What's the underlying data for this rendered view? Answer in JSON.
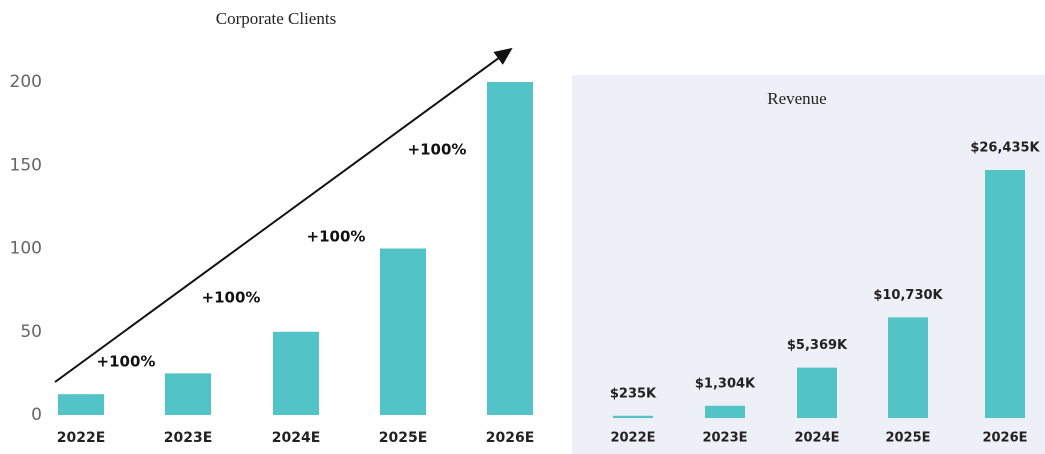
{
  "chart_data": [
    {
      "type": "bar",
      "title": "Corporate Clients",
      "categories": [
        "2022E",
        "2023E",
        "2024E",
        "2025E",
        "2026E"
      ],
      "values": [
        12.5,
        25,
        50,
        100,
        200
      ],
      "color": "#52c3c6",
      "ylim": [
        0,
        200
      ],
      "yticks": [
        0,
        50,
        100,
        150,
        200
      ],
      "annotations": [
        "+100%",
        "+100%",
        "+100%",
        "+100%"
      ]
    },
    {
      "type": "bar",
      "title": "Revenue",
      "categories": [
        "2022E",
        "2023E",
        "2024E",
        "2025E",
        "2026E"
      ],
      "values": [
        235,
        1304,
        5369,
        10730,
        26435
      ],
      "value_labels": [
        "$235K",
        "$1,304K",
        "$5,369K",
        "$10,730K",
        "$26,435K"
      ],
      "color": "#52c3c6"
    }
  ]
}
